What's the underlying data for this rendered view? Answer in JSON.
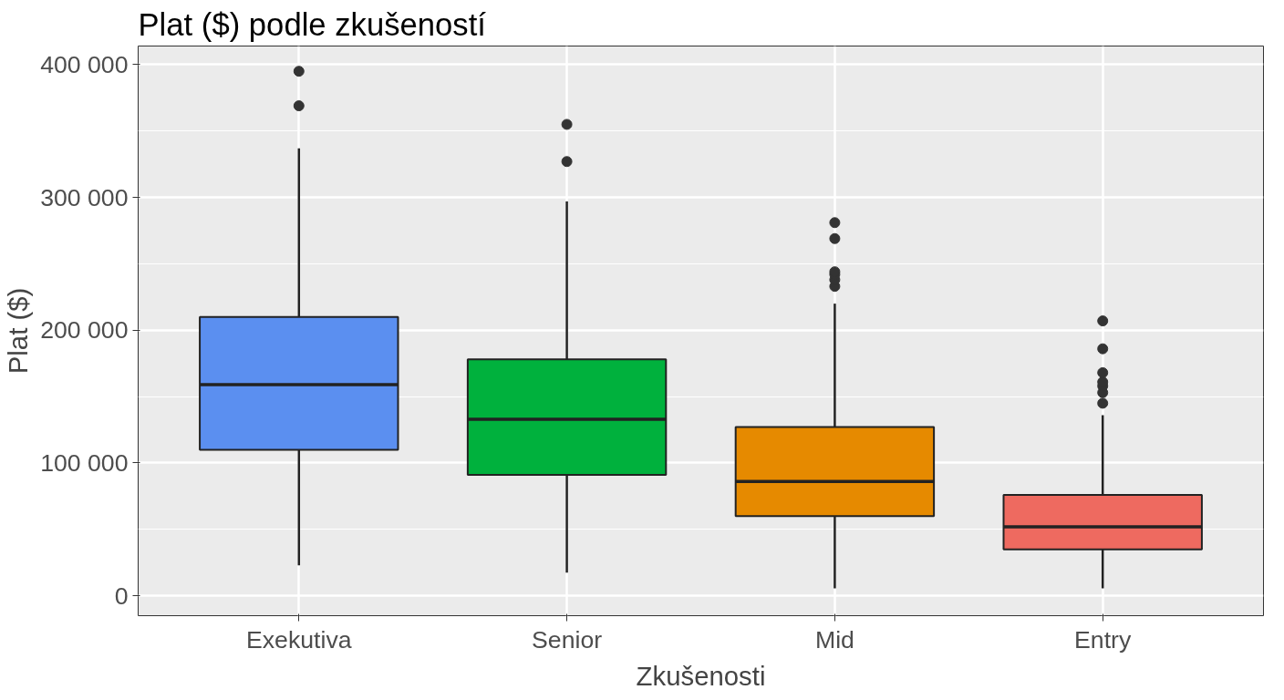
{
  "chart_data": {
    "type": "box",
    "title": "Plat ($) podle zkušeností",
    "xlabel": "Zkušenosti",
    "ylabel": "Plat ($)",
    "categories": [
      "Exekutiva",
      "Senior",
      "Mid",
      "Entry"
    ],
    "colors": [
      "#5b8ff0",
      "#00b13d",
      "#e68a00",
      "#ee6a60"
    ],
    "boxes": [
      {
        "low": 23000,
        "q1": 110000,
        "median": 159000,
        "q3": 210000,
        "high": 337000,
        "outliers": [
          369000,
          395000
        ]
      },
      {
        "low": 17500,
        "q1": 91000,
        "median": 133000,
        "q3": 178000,
        "high": 297000,
        "outliers": [
          327000,
          355000
        ]
      },
      {
        "low": 5600,
        "q1": 60000,
        "median": 86000,
        "q3": 127000,
        "high": 220000,
        "outliers": [
          233000,
          238000,
          242000,
          244000,
          269000,
          281000
        ]
      },
      {
        "low": 5600,
        "q1": 35000,
        "median": 52000,
        "q3": 76000,
        "high": 136000,
        "outliers": [
          145000,
          153000,
          158000,
          161000,
          168000,
          186000,
          207000
        ]
      }
    ],
    "ylim": [
      -15000,
      414000
    ],
    "yticks": [
      {
        "value": 0,
        "label": "0"
      },
      {
        "value": 100000,
        "label": "100 000"
      },
      {
        "value": 200000,
        "label": "200 000"
      },
      {
        "value": 300000,
        "label": "300 000"
      },
      {
        "value": 400000,
        "label": "400 000"
      }
    ],
    "grid": true
  }
}
